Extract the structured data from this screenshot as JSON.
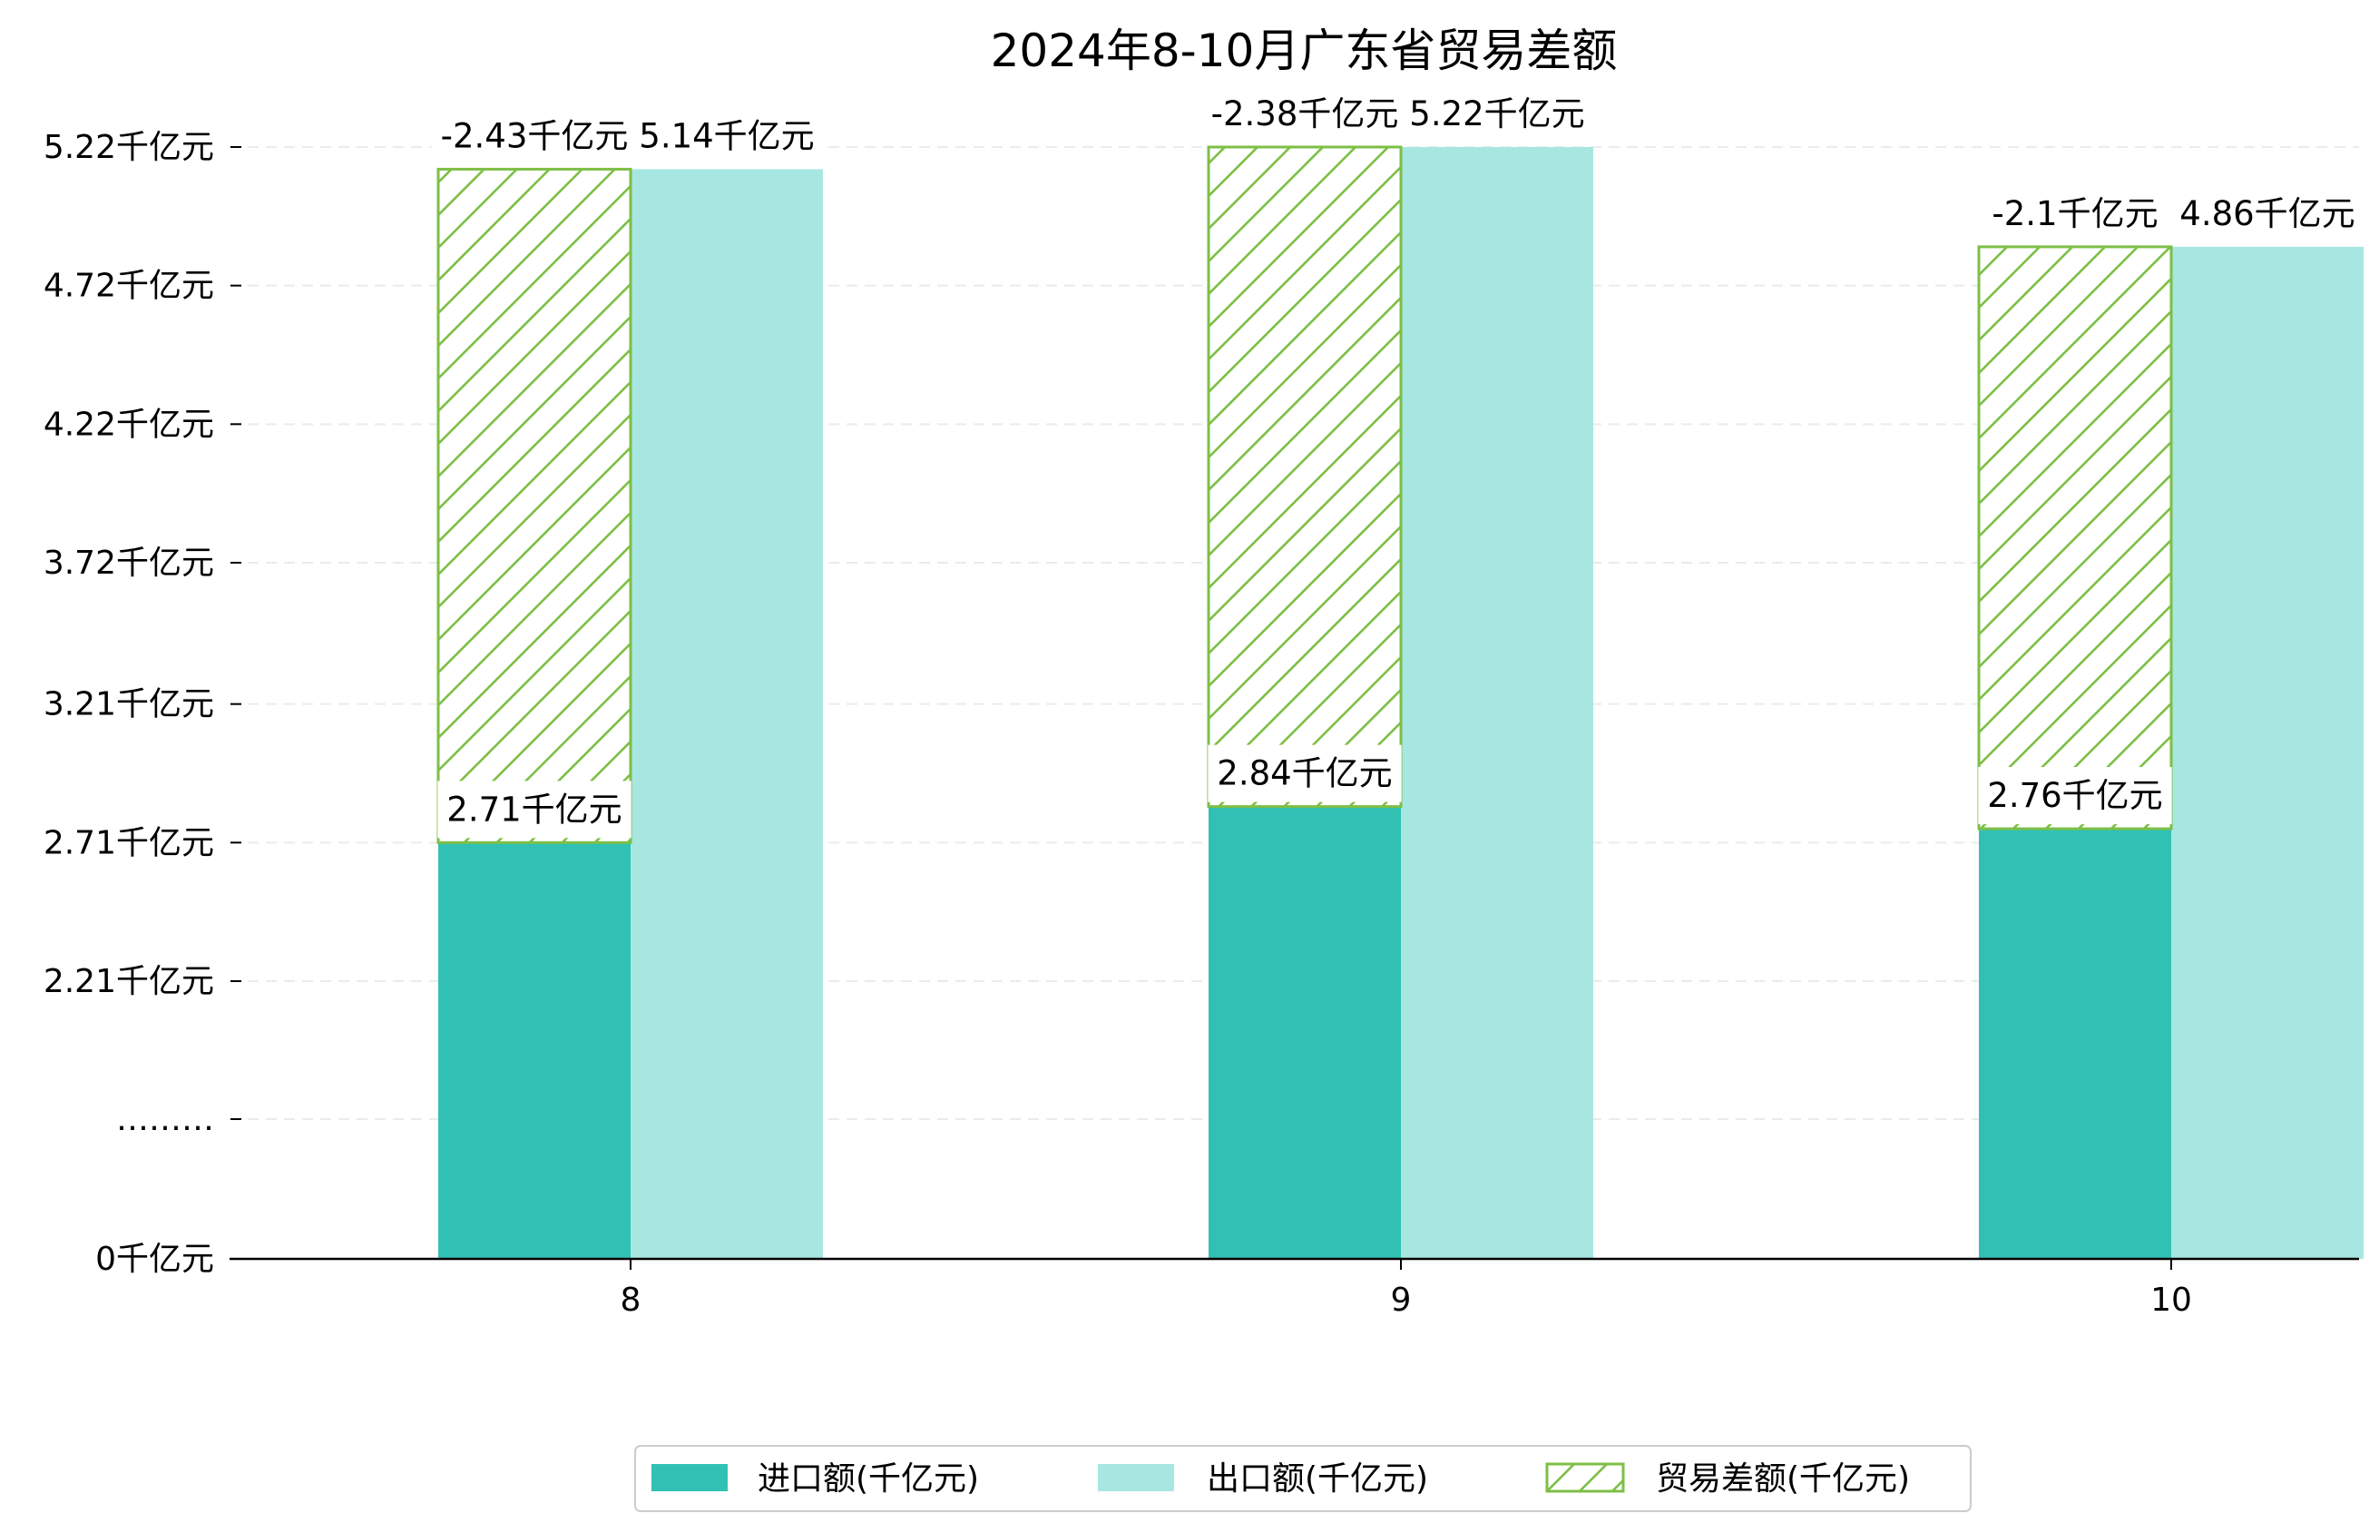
{
  "chart_data": {
    "type": "bar",
    "title": "2024年8-10月广东省贸易差额",
    "xlabel": "",
    "ylabel": "",
    "categories": [
      "8",
      "9",
      "10"
    ],
    "ylim": [
      0,
      5.22
    ],
    "y_scale": "broken",
    "y_ticks": [
      {
        "label": "0千亿元",
        "value": 0
      },
      {
        "label": "………",
        "value": null
      },
      {
        "label": "2.21千亿元",
        "value": 2.21
      },
      {
        "label": "2.71千亿元",
        "value": 2.71
      },
      {
        "label": "3.21千亿元",
        "value": 3.21
      },
      {
        "label": "3.72千亿元",
        "value": 3.72
      },
      {
        "label": "4.22千亿元",
        "value": 4.22
      },
      {
        "label": "4.72千亿元",
        "value": 4.72
      },
      {
        "label": "5.22千亿元",
        "value": 5.22
      }
    ],
    "series": [
      {
        "name": "进口额(千亿元)",
        "values": [
          2.71,
          2.84,
          2.76
        ],
        "labels": [
          "2.71千亿元",
          "2.84千亿元",
          "2.76千亿元"
        ],
        "color": "#31c1b4",
        "pattern": "solid"
      },
      {
        "name": "出口额(千亿元)",
        "values": [
          5.14,
          5.22,
          4.86
        ],
        "labels": [
          "5.14千亿元",
          "5.22千亿元",
          "4.86千亿元"
        ],
        "color": "#a8e7e1",
        "pattern": "solid"
      },
      {
        "name": "贸易差额(千亿元)",
        "values": [
          -2.43,
          -2.38,
          -2.1
        ],
        "labels": [
          "-2.43千亿元",
          "-2.38千亿元",
          "-2.1千亿元"
        ],
        "color": "#7dbf46",
        "pattern": "hatch",
        "stacked_on": "进口额(千亿元)"
      }
    ],
    "grid": {
      "y": true,
      "style": "dashed",
      "color": "#e9ecec"
    },
    "legend": {
      "position": "bottom-center"
    }
  }
}
